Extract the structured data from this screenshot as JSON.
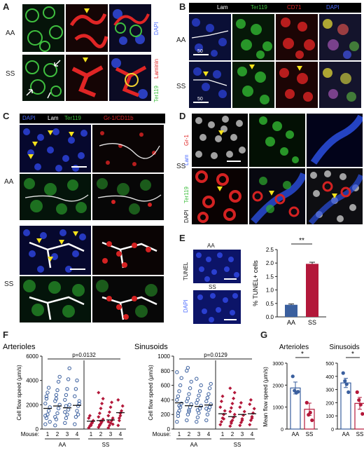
{
  "panels": {
    "A": {
      "letter": "A",
      "rows": [
        "AA",
        "SS"
      ],
      "stains": [
        "DAPI",
        "Laminin",
        "Ter119"
      ]
    },
    "B": {
      "letter": "B",
      "rows": [
        "AA",
        "SS"
      ],
      "stains": [
        "Lam",
        "Ter119",
        "CD71",
        "DAPI"
      ],
      "scale": "50"
    },
    "C": {
      "letter": "C",
      "rows": [
        "AA",
        "SS"
      ],
      "stains": [
        "DAPI",
        "Lam",
        "Ter119",
        "Gr-1/CD11b"
      ]
    },
    "D": {
      "letter": "D",
      "row": "SS",
      "stains": [
        "Gr-1",
        "Lam",
        "Ter119",
        "DAPI"
      ]
    },
    "E": {
      "letter": "E",
      "rows": [
        "AA",
        "SS"
      ],
      "stains": [
        "TUNEL",
        "DAPI"
      ]
    },
    "F": {
      "letter": "F"
    },
    "G": {
      "letter": "G"
    }
  },
  "colors": {
    "aa": "#3a5f9e",
    "ss": "#b3183a"
  },
  "chart_data": [
    {
      "id": "E",
      "type": "bar",
      "categories": [
        "AA",
        "SS"
      ],
      "values": [
        0.45,
        1.97
      ],
      "errors": [
        0.03,
        0.06
      ],
      "ylabel": "% TUNEL+ cells",
      "ylim": [
        0,
        2.5
      ],
      "yticks": [
        "0.0",
        "0.5",
        "1.0",
        "1.5",
        "2.0",
        "2.5"
      ],
      "significance": "**"
    },
    {
      "id": "F-arterioles",
      "type": "scatter",
      "title": "Arterioles",
      "ylabel": "Cell flow speed (μm/s)",
      "ylim": [
        0,
        6000
      ],
      "yticks": [
        "0",
        "2000",
        "4000",
        "6000"
      ],
      "xlabel_prefix": "Mouse:",
      "mice": [
        "1",
        "2",
        "3",
        "4",
        "1",
        "2",
        "3",
        "4"
      ],
      "groups": [
        "AA",
        "SS"
      ],
      "pvalue": "p=0.0132",
      "means": [
        1700,
        1900,
        1750,
        1950,
        650,
        700,
        750,
        1350
      ],
      "series": [
        {
          "group": "AA",
          "mouse": "1",
          "values": [
            400,
            900,
            1200,
            1500,
            1800,
            2100,
            2500,
            3000,
            3400,
            600,
            1100,
            2700
          ]
        },
        {
          "group": "AA",
          "mouse": "2",
          "values": [
            300,
            800,
            1300,
            1700,
            2000,
            2300,
            2800,
            3200,
            3900,
            4300,
            1000,
            2500
          ]
        },
        {
          "group": "AA",
          "mouse": "3",
          "values": [
            500,
            900,
            1200,
            1600,
            2000,
            2400,
            2800,
            3300,
            4100,
            5000,
            1400,
            1900
          ]
        },
        {
          "group": "AA",
          "mouse": "4",
          "values": [
            400,
            1000,
            1500,
            1900,
            2300,
            2700,
            3300,
            4000,
            1200,
            2100
          ]
        },
        {
          "group": "SS",
          "mouse": "1",
          "values": [
            100,
            250,
            400,
            550,
            700,
            900,
            1100,
            300,
            500
          ]
        },
        {
          "group": "SS",
          "mouse": "2",
          "values": [
            150,
            300,
            450,
            600,
            800,
            1000,
            1300,
            1700,
            2100,
            2500,
            3000,
            350,
            650
          ]
        },
        {
          "group": "SS",
          "mouse": "3",
          "values": [
            100,
            300,
            500,
            700,
            900,
            1100,
            1400,
            1800,
            2200,
            400,
            600
          ]
        },
        {
          "group": "SS",
          "mouse": "4",
          "values": [
            300,
            700,
            1100,
            1500,
            1900,
            2400,
            900,
            1300
          ]
        }
      ]
    },
    {
      "id": "F-sinusoids",
      "type": "scatter",
      "title": "Sinusoids",
      "ylabel": "Cell flow speed (μm/s)",
      "ylim": [
        0,
        1000
      ],
      "yticks": [
        "0",
        "200",
        "400",
        "600",
        "800",
        "1000"
      ],
      "xlabel_prefix": "Mouse:",
      "mice": [
        "1",
        "2",
        "3",
        "4",
        "1",
        "2",
        "3",
        "4"
      ],
      "groups": [
        "AA",
        "SS"
      ],
      "pvalue": "p=0.0129",
      "means": [
        360,
        320,
        310,
        330,
        210,
        170,
        200,
        210
      ],
      "series": [
        {
          "group": "AA",
          "mouse": "1",
          "values": [
            100,
            180,
            250,
            300,
            350,
            400,
            450,
            520,
            600,
            700,
            780,
            220,
            320
          ]
        },
        {
          "group": "AA",
          "mouse": "2",
          "values": [
            120,
            200,
            260,
            300,
            340,
            380,
            420,
            480,
            560,
            650,
            800,
            840,
            240
          ]
        },
        {
          "group": "AA",
          "mouse": "3",
          "values": [
            100,
            160,
            220,
            280,
            320,
            360,
            400,
            460,
            520,
            600,
            690,
            260
          ]
        },
        {
          "group": "AA",
          "mouse": "4",
          "values": [
            120,
            200,
            260,
            300,
            340,
            380,
            430,
            480,
            560,
            620,
            280
          ]
        },
        {
          "group": "SS",
          "mouse": "1",
          "values": [
            60,
            100,
            150,
            200,
            250,
            300,
            380,
            450,
            140
          ]
        },
        {
          "group": "SS",
          "mouse": "2",
          "values": [
            40,
            80,
            120,
            160,
            200,
            240,
            290,
            350,
            420,
            500,
            560,
            100
          ]
        },
        {
          "group": "SS",
          "mouse": "3",
          "values": [
            50,
            90,
            140,
            190,
            240,
            300,
            360,
            120
          ]
        },
        {
          "group": "SS",
          "mouse": "4",
          "values": [
            60,
            120,
            170,
            220,
            280,
            340,
            400,
            150
          ]
        }
      ]
    },
    {
      "id": "G-arterioles",
      "type": "bar",
      "title": "Arterioles",
      "ylabel": "Mean flow speed (μm/s)",
      "categories": [
        "AA",
        "SS"
      ],
      "values": [
        1870,
        900
      ],
      "errors": [
        270,
        280
      ],
      "points": [
        [
          2400,
          1750,
          1650,
          1700
        ],
        [
          1200,
          650,
          750,
          400
        ]
      ],
      "ylim": [
        0,
        3000
      ],
      "yticks": [
        "0",
        "1000",
        "2000",
        "3000"
      ],
      "significance": "*"
    },
    {
      "id": "G-sinusoids",
      "type": "bar",
      "title": "Sinusoids",
      "categories": [
        "AA",
        "SS"
      ],
      "values": [
        350,
        195
      ],
      "errors": [
        35,
        45
      ],
      "points": [
        [
          425,
          365,
          340,
          280
        ],
        [
          280,
          220,
          185,
          115
        ]
      ],
      "ylim": [
        0,
        500
      ],
      "yticks": [
        "0",
        "100",
        "200",
        "300",
        "400",
        "500"
      ],
      "significance": "*"
    }
  ]
}
